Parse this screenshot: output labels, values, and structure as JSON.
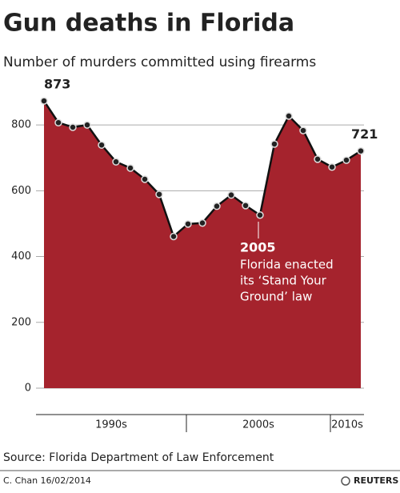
{
  "chart_data": {
    "type": "area",
    "title": "Gun deaths in Florida",
    "subtitle": "Number of murders committed using firearms",
    "categories": [
      null,
      null,
      null,
      null,
      null,
      null,
      null,
      null,
      null,
      null,
      null,
      null,
      null,
      null,
      null,
      null,
      null,
      null,
      null,
      null,
      null,
      null,
      null
    ],
    "groups": [
      {
        "label": "1990s",
        "count": 10
      },
      {
        "label": "2000s",
        "count": 10
      },
      {
        "label": "2010s",
        "count": 3
      }
    ],
    "values": [
      873,
      807,
      793,
      800,
      739,
      688,
      669,
      635,
      589,
      461,
      499,
      502,
      553,
      587,
      555,
      526,
      742,
      827,
      783,
      696,
      672,
      693,
      721
    ],
    "labeled_points": [
      0,
      22
    ],
    "color": "#a5232d",
    "ylim": [
      0,
      900
    ],
    "yticks": [
      0,
      200,
      400,
      600,
      800
    ],
    "grid": true,
    "annotation": {
      "title": "2005",
      "lines": [
        "Florida enacted",
        "its ‘Stand Your",
        "Ground’ law"
      ]
    },
    "source": "Source: Florida Department of Law Enforcement",
    "credit": "C. Chan  16/02/2014",
    "brand": "REUTERS"
  }
}
